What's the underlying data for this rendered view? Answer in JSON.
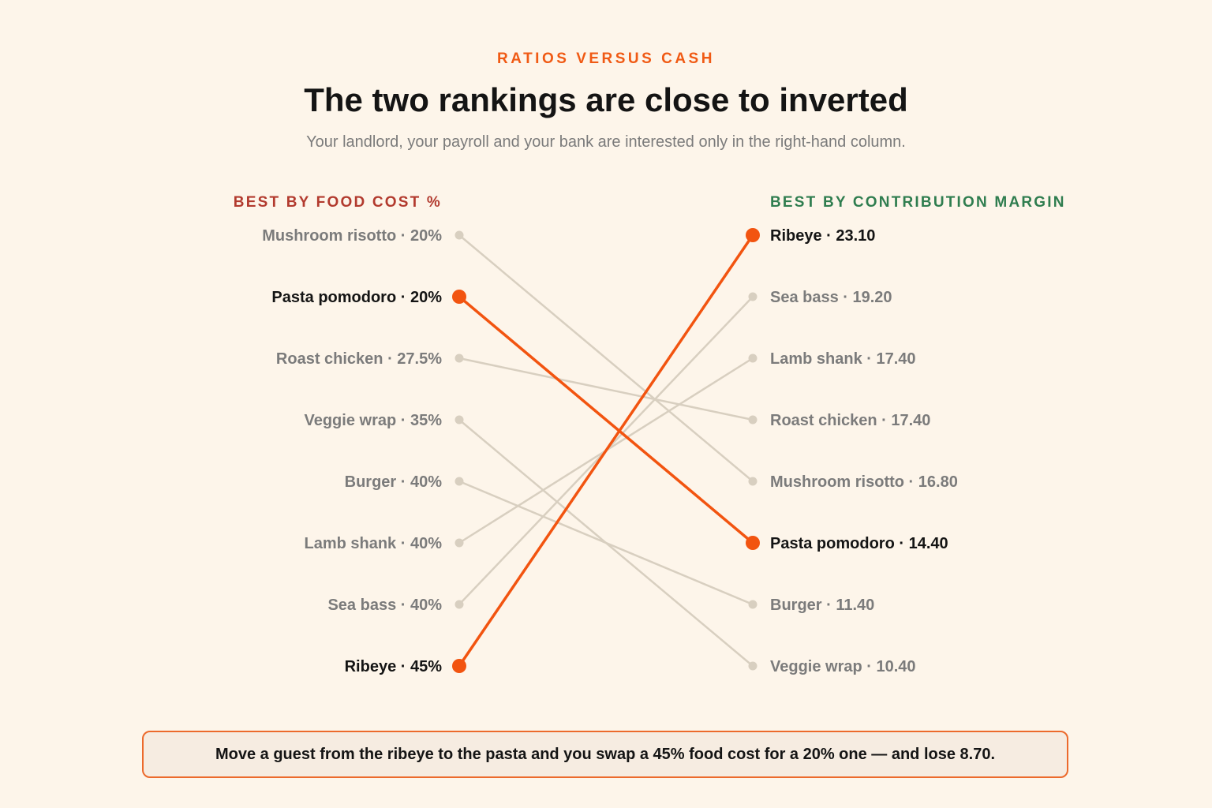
{
  "eyebrow": "RATIOS VERSUS CASH",
  "title": "The two rankings are close to inverted",
  "subtitle": "Your landlord, your payroll and your bank are interested only in the right-hand column.",
  "callout": "Move a guest from the ribeye to the pasta and you swap a 45% food cost for a 20% one — and lose 8.70.",
  "colors": {
    "highlight": "#f25410",
    "muted_line": "#d8cfc0",
    "muted_text": "#7b7b7b",
    "left_header": "#b23a2e",
    "right_header": "#2f7d4f"
  },
  "chart_data": {
    "type": "slope",
    "left_header": "BEST BY FOOD COST %",
    "right_header": "BEST BY CONTRIBUTION MARGIN",
    "left": [
      {
        "item": "Mushroom risotto",
        "value": "20%"
      },
      {
        "item": "Pasta pomodoro",
        "value": "20%"
      },
      {
        "item": "Roast chicken",
        "value": "27.5%"
      },
      {
        "item": "Veggie wrap",
        "value": "35%"
      },
      {
        "item": "Burger",
        "value": "40%"
      },
      {
        "item": "Lamb shank",
        "value": "40%"
      },
      {
        "item": "Sea bass",
        "value": "40%"
      },
      {
        "item": "Ribeye",
        "value": "45%"
      }
    ],
    "right": [
      {
        "item": "Ribeye",
        "value": "23.10"
      },
      {
        "item": "Sea bass",
        "value": "19.20"
      },
      {
        "item": "Lamb shank",
        "value": "17.40"
      },
      {
        "item": "Roast chicken",
        "value": "17.40"
      },
      {
        "item": "Mushroom risotto",
        "value": "16.80"
      },
      {
        "item": "Pasta pomodoro",
        "value": "14.40"
      },
      {
        "item": "Burger",
        "value": "11.40"
      },
      {
        "item": "Veggie wrap",
        "value": "10.40"
      }
    ],
    "highlighted": [
      "Pasta pomodoro",
      "Ribeye"
    ]
  }
}
